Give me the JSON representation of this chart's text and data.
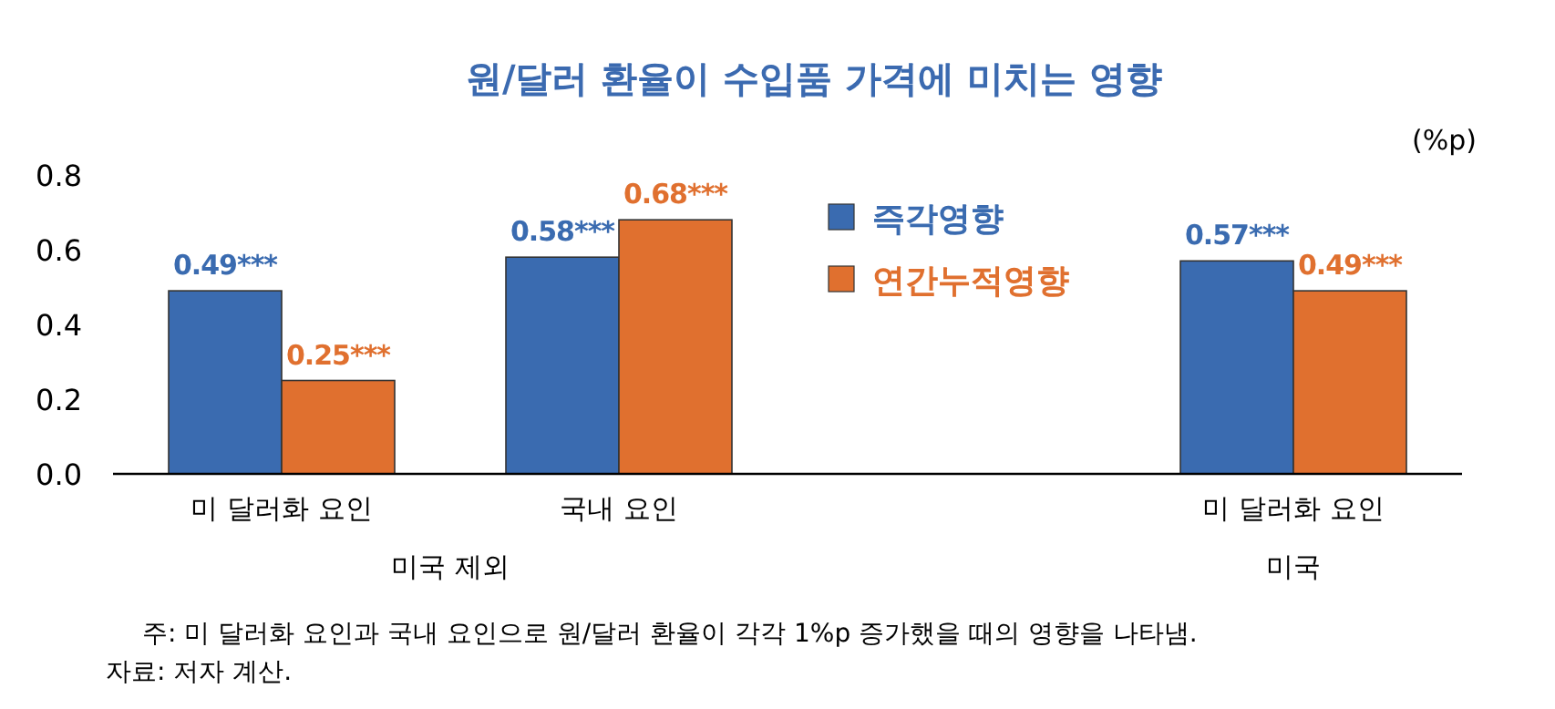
{
  "chart_data": {
    "type": "bar",
    "title": "원/달러 환율이 수입품 가격에 미치는 영향",
    "ylabel": "(%p)",
    "categories": [
      "미 달러화 요인",
      "국내 요인",
      null,
      "미 달러화 요인"
    ],
    "series": [
      {
        "name": "즉각영향",
        "color": "#3a6bb0",
        "values": [
          0.49,
          0.58,
          null,
          0.57
        ],
        "value_labels": [
          "0.49***",
          "0.58***",
          null,
          "0.57***"
        ]
      },
      {
        "name": "연간누적영향",
        "color": "#e0702f",
        "values": [
          0.25,
          0.68,
          null,
          0.49
        ],
        "value_labels": [
          "0.25***",
          "0.68***",
          null,
          "0.49***"
        ]
      }
    ],
    "ylim": [
      0,
      0.8
    ],
    "yticks": [
      {
        "value": 0,
        "label": "0.0"
      },
      0.2,
      0.4,
      0.6,
      0.8
    ],
    "grid": false,
    "legend": "top",
    "annotations": [
      "미국 제외",
      "미국",
      "주: 미 달러화 요인과 국내 요인으로 원/달러 환율이 각각 1%p 증가했을 때의 영향을 나타냄.",
      "자료: 저자 계산."
    ]
  }
}
